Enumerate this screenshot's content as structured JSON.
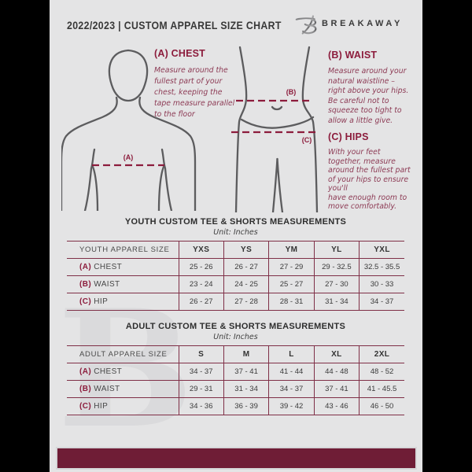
{
  "header": {
    "title": "2022/2023  |  CUSTOM APPAREL SIZE CHART",
    "brand": "BREAKAWAY"
  },
  "measurements": {
    "chest": {
      "heading": "(A) CHEST",
      "marker": "(A)",
      "description": "Measure around the\nfullest part of your\nchest, keeping the\ntape measure parallel\nto the floor"
    },
    "waist": {
      "heading": "(B) WAIST",
      "marker": "(B)",
      "description": "Measure around your\nnatural waistline –\nright above your hips.\nBe careful not to\nsqueeze too tight to\nallow a little give."
    },
    "hips": {
      "heading": "(C) HIPS",
      "marker": "(C)",
      "description": "With your feet\ntogether, measure\naround the fullest part\nof your hips to ensure\nyou'll\nhave enough room to\nmove comfortably."
    }
  },
  "tables": {
    "youth": {
      "title": "YOUTH CUSTOM TEE & SHORTS MEASUREMENTS",
      "unit": "Unit: Inches",
      "size_label": "YOUTH APPAREL SIZE",
      "sizes": [
        "YXS",
        "YS",
        "YM",
        "YL",
        "YXL"
      ],
      "rows": [
        {
          "prefix": "(A)",
          "label": "CHEST",
          "values": [
            "25 - 26",
            "26 - 27",
            "27 - 29",
            "29 - 32.5",
            "32.5 - 35.5"
          ]
        },
        {
          "prefix": "(B)",
          "label": "WAIST",
          "values": [
            "23 - 24",
            "24 - 25",
            "25 - 27",
            "27 - 30",
            "30 - 33"
          ]
        },
        {
          "prefix": "(C)",
          "label": "HIP",
          "values": [
            "26 - 27",
            "27 - 28",
            "28 - 31",
            "31 - 34",
            "34 - 37"
          ]
        }
      ]
    },
    "adult": {
      "title": "ADULT CUSTOM TEE & SHORTS MEASUREMENTS",
      "unit": "Unit: Inches",
      "size_label": "ADULT APPAREL SIZE",
      "sizes": [
        "S",
        "M",
        "L",
        "XL",
        "2XL"
      ],
      "rows": [
        {
          "prefix": "(A)",
          "label": "CHEST",
          "values": [
            "34 - 37",
            "37 - 41",
            "41 - 44",
            "44 - 48",
            "48 - 52"
          ]
        },
        {
          "prefix": "(B)",
          "label": "WAIST",
          "values": [
            "29 - 31",
            "31 - 34",
            "34 - 37",
            "37 - 41",
            "41 - 45.5"
          ]
        },
        {
          "prefix": "(C)",
          "label": "HIP",
          "values": [
            "34 - 36",
            "36 - 39",
            "39 - 42",
            "43 - 46",
            "46 - 50"
          ]
        }
      ]
    }
  },
  "watermark": {
    "letter": "B"
  },
  "colors": {
    "maroon": "#8c1c3c",
    "maroon_soft": "#8d3b55",
    "table_line": "#7f2f47",
    "footer": "#6f1d36",
    "page_bg": "#e4e4e5",
    "text_dark": "#3a3a3a"
  }
}
